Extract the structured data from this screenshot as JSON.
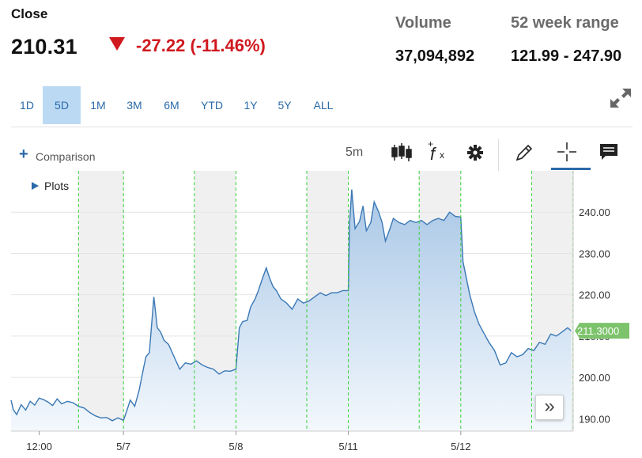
{
  "header": {
    "close_label": "Close",
    "price": "210.31",
    "change": "-27.22 (-11.46%)",
    "volume_label": "Volume",
    "volume_value": "37,094,892",
    "range_label": "52 week range",
    "range_value": "121.99 - 247.90"
  },
  "ranges": [
    "1D",
    "5D",
    "1M",
    "3M",
    "6M",
    "YTD",
    "1Y",
    "5Y",
    "ALL"
  ],
  "active_range": "5D",
  "toolbar": {
    "comparison_label": "Comparison",
    "plus_glyph": "+",
    "interval": "5m",
    "plots_label": "Plots",
    "icons": [
      "candlestick-icon",
      "fx-icon",
      "gear-icon",
      "pencil-icon",
      "crosshair-icon",
      "comment-icon",
      "expand-icon"
    ]
  },
  "expand_glyph": "»",
  "colors": {
    "accent": "#2a6aa8",
    "line": "#3a78b5",
    "negative": "#d0181f",
    "last_price_tag": "#7dc36b",
    "session_divider": "#3ad03a"
  },
  "chart_data": {
    "type": "area",
    "title": "",
    "xlabel": "",
    "ylabel": "",
    "ylim": [
      187,
      250
    ],
    "y_ticks": [
      190.0,
      200.0,
      210.0,
      220.0,
      230.0,
      240.0
    ],
    "y_tick_labels": [
      "190.00",
      "200.00",
      "210.00",
      "220.00",
      "230.00",
      "240.00"
    ],
    "x_tick_labels": [
      "12:00",
      "5/7",
      "5/8",
      "5/11",
      "5/12"
    ],
    "x_tick_positions": [
      0.25,
      1.0,
      2.0,
      3.0,
      4.0
    ],
    "sessions": [
      {
        "start": 0.0,
        "end": 1.0,
        "premarket_end": 0.0
      },
      {
        "start": 1.0,
        "end": 2.0
      },
      {
        "start": 2.0,
        "end": 3.0
      },
      {
        "start": 3.0,
        "end": 4.0
      },
      {
        "start": 4.0,
        "end": 5.0
      }
    ],
    "shaded_ranges": [
      [
        0.6,
        1.0
      ],
      [
        1.63,
        2.0
      ],
      [
        2.63,
        3.0
      ],
      [
        3.63,
        4.0
      ],
      [
        4.63,
        5.0
      ]
    ],
    "last_price": 211.3,
    "last_price_label": "211.3000",
    "series": [
      {
        "x": [
          0.0,
          0.02,
          0.05,
          0.09,
          0.13,
          0.17,
          0.21,
          0.25,
          0.29,
          0.33,
          0.37,
          0.41,
          0.45,
          0.5,
          0.55,
          0.6,
          0.65,
          0.7,
          0.75,
          0.8,
          0.85,
          0.9,
          0.95,
          1.0,
          1.03,
          1.06,
          1.1,
          1.14,
          1.18,
          1.2,
          1.23,
          1.27,
          1.3,
          1.33,
          1.36,
          1.4,
          1.45,
          1.5,
          1.55,
          1.6,
          1.65,
          1.7,
          1.75,
          1.8,
          1.85,
          1.9,
          1.95,
          2.0,
          2.03,
          2.06,
          2.1,
          2.13,
          2.17,
          2.2,
          2.23,
          2.27,
          2.3,
          2.33,
          2.36,
          2.4,
          2.45,
          2.5,
          2.55,
          2.6,
          2.65,
          2.7,
          2.75,
          2.8,
          2.85,
          2.9,
          2.95,
          3.0,
          3.01,
          3.03,
          3.06,
          3.1,
          3.13,
          3.16,
          3.2,
          3.23,
          3.27,
          3.3,
          3.33,
          3.37,
          3.4,
          3.45,
          3.5,
          3.55,
          3.6,
          3.65,
          3.7,
          3.75,
          3.8,
          3.85,
          3.9,
          3.95,
          4.0,
          4.02,
          4.05,
          4.08,
          4.12,
          4.16,
          4.2,
          4.25,
          4.3,
          4.35,
          4.4,
          4.45,
          4.5,
          4.55,
          4.6,
          4.65,
          4.7,
          4.75,
          4.8,
          4.85,
          4.9,
          4.95,
          4.98
        ],
        "values": [
          194.5,
          192.2,
          191.0,
          193.4,
          192.1,
          194.2,
          193.3,
          195.0,
          194.6,
          194.0,
          193.2,
          194.8,
          193.6,
          194.2,
          193.9,
          193.0,
          192.6,
          191.5,
          190.7,
          190.2,
          190.3,
          189.5,
          190.2,
          189.6,
          192.0,
          194.5,
          193.0,
          197.0,
          202.5,
          205.0,
          206.0,
          219.5,
          212.0,
          211.0,
          209.0,
          208.0,
          205.0,
          202.0,
          203.5,
          203.2,
          204.0,
          203.0,
          202.4,
          202.0,
          200.8,
          201.6,
          201.5,
          202.0,
          212.0,
          213.5,
          213.8,
          217.0,
          219.0,
          221.0,
          223.5,
          226.5,
          224.0,
          222.0,
          221.0,
          219.0,
          218.0,
          216.5,
          219.0,
          218.0,
          218.5,
          219.5,
          220.5,
          219.8,
          220.5,
          220.5,
          221.0,
          221.0,
          237.0,
          245.5,
          236.0,
          237.8,
          241.5,
          235.5,
          237.5,
          242.5,
          240.0,
          237.5,
          233.0,
          236.0,
          238.5,
          237.5,
          237.0,
          238.0,
          237.5,
          238.0,
          237.0,
          238.0,
          238.5,
          238.0,
          240.0,
          239.0,
          238.8,
          228.0,
          224.0,
          220.0,
          216.0,
          213.0,
          211.0,
          208.5,
          206.5,
          203.0,
          203.5,
          206.0,
          205.0,
          205.5,
          207.0,
          206.5,
          208.5,
          208.0,
          210.5,
          210.0,
          211.0,
          212.0,
          211.3
        ]
      }
    ]
  }
}
